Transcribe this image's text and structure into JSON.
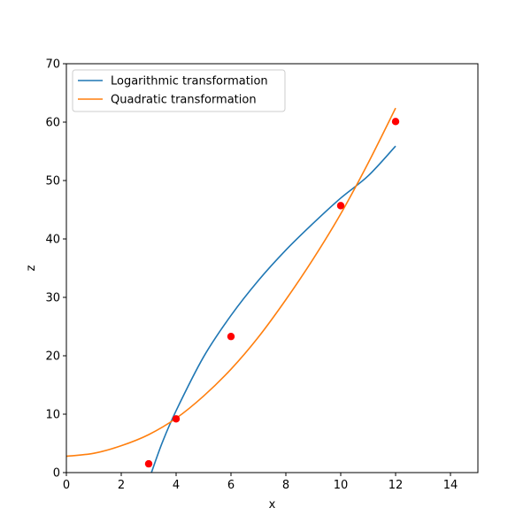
{
  "chart_data": {
    "type": "line",
    "title": "",
    "xlabel": "x",
    "ylabel": "z",
    "xlim": [
      0,
      15
    ],
    "ylim": [
      0,
      70
    ],
    "xticks": [
      0,
      2,
      4,
      6,
      8,
      10,
      12,
      14
    ],
    "yticks": [
      0,
      10,
      20,
      30,
      40,
      50,
      60,
      70
    ],
    "grid": false,
    "legend_position": "upper-left",
    "series": [
      {
        "name": "Logarithmic transformation",
        "kind": "line",
        "color": "#1f77b4",
        "x": [
          3.1,
          3.5,
          4,
          5,
          6,
          7,
          8,
          9,
          10,
          11,
          12
        ],
        "y": [
          0,
          5.2,
          10.6,
          19.8,
          26.9,
          32.9,
          38.1,
          42.7,
          47.0,
          50.8,
          55.9
        ]
      },
      {
        "name": "Quadratic transformation",
        "kind": "line",
        "color": "#ff7f0e",
        "x": [
          0,
          1,
          2,
          3,
          4,
          5,
          6,
          7,
          8,
          9,
          10,
          11,
          12
        ],
        "y": [
          2.8,
          3.3,
          4.6,
          6.5,
          9.3,
          13.1,
          17.7,
          23.2,
          29.6,
          36.6,
          44.3,
          53.0,
          62.4
        ]
      }
    ],
    "points": {
      "kind": "scatter",
      "color": "#ff0000",
      "x": [
        3,
        4,
        6,
        10,
        12
      ],
      "y": [
        1.5,
        9.2,
        23.3,
        45.7,
        60.1
      ]
    }
  }
}
